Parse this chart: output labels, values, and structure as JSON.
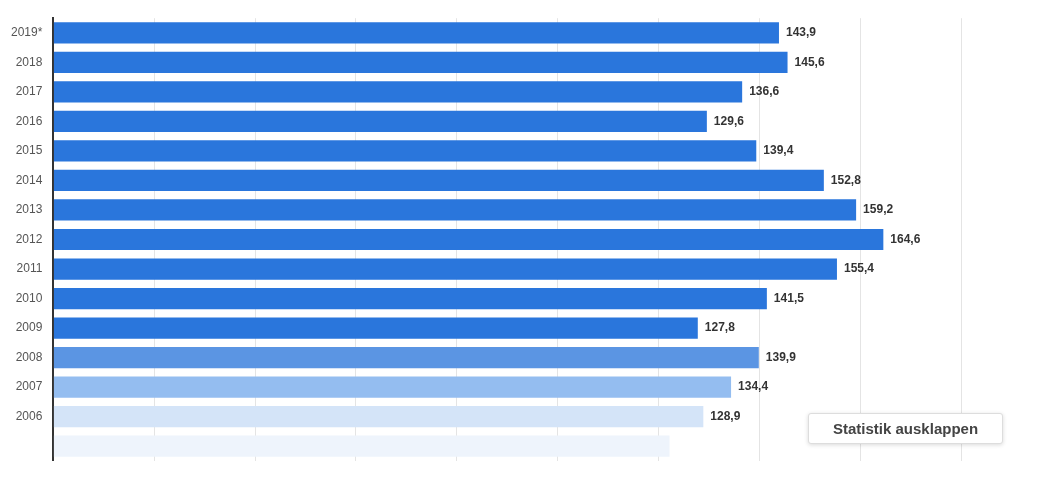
{
  "chart_data": {
    "type": "bar",
    "orientation": "horizontal",
    "categories": [
      "2019*",
      "2018",
      "2017",
      "2016",
      "2015",
      "2014",
      "2013",
      "2012",
      "2011",
      "2010",
      "2009",
      "2008",
      "2007",
      "2006",
      null
    ],
    "values": [
      143.9,
      145.6,
      136.6,
      129.6,
      139.4,
      152.8,
      159.2,
      164.6,
      155.4,
      141.5,
      127.8,
      139.9,
      134.4,
      128.9,
      122.2
    ],
    "value_labels": [
      "143,9",
      "145,6",
      "136,6",
      "129,6",
      "139,4",
      "152,8",
      "159,2",
      "164,6",
      "155,4",
      "141,5",
      "127,8",
      "139,9",
      "134,4",
      "128,9",
      null
    ],
    "colors": [
      "#2a76dc",
      "#2a76dc",
      "#2a76dc",
      "#2a76dc",
      "#2a76dc",
      "#2a76dc",
      "#2a76dc",
      "#2a76dc",
      "#2a76dc",
      "#2a76dc",
      "#2a76dc",
      "#5b95e3",
      "#94bdf0",
      "#d4e4f8",
      "#eef4fc"
    ],
    "xlim": [
      0,
      180
    ],
    "xticks": [
      {
        "value": 0,
        "label": null
      },
      {
        "value": 20,
        "label": null
      },
      {
        "value": 40,
        "label": null
      },
      {
        "value": 60,
        "label": null
      },
      {
        "value": 80,
        "label": null
      },
      {
        "value": 100,
        "label": null
      },
      {
        "value": 120,
        "label": null
      },
      {
        "value": 140,
        "label": null
      },
      {
        "value": 160,
        "label": null
      },
      {
        "value": 180,
        "label": null
      }
    ],
    "tick_labels": "y",
    "grid": "x",
    "legend": false,
    "annotations": [
      "Statistik ausklappen"
    ]
  }
}
